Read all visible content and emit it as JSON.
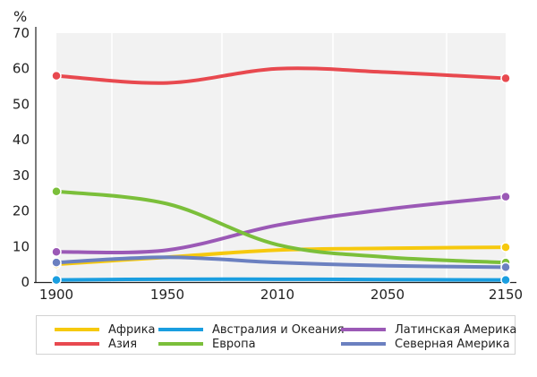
{
  "chart_data": {
    "type": "line",
    "unit_label": "%",
    "title": "",
    "xlabel": "",
    "ylabel": "%",
    "ylim": [
      0,
      70
    ],
    "y_ticks": [
      0,
      10,
      20,
      30,
      40,
      50,
      60,
      70
    ],
    "categories": [
      "1900",
      "1950",
      "2010",
      "2050",
      "2150"
    ],
    "grid": "vertical-band",
    "legend_position": "bottom",
    "series": [
      {
        "name": "Африка",
        "color": "#f6c90e",
        "values": [
          5,
          7,
          9,
          9.5,
          9.8
        ]
      },
      {
        "name": "Австралия и Океания",
        "color": "#1a9ee0",
        "values": [
          0.6,
          0.8,
          0.8,
          0.7,
          0.6
        ]
      },
      {
        "name": "Латинская Америка",
        "color": "#9b59b6",
        "values": [
          8.5,
          9,
          16,
          20.5,
          24
        ]
      },
      {
        "name": "Азия",
        "color": "#e8494f",
        "values": [
          58,
          56,
          60,
          59,
          57.3
        ]
      },
      {
        "name": "Европа",
        "color": "#7bbf3a",
        "values": [
          25.5,
          22,
          10.5,
          7,
          5.5
        ]
      },
      {
        "name": "Северная Америка",
        "color": "#6b80c0",
        "values": [
          5.5,
          7,
          5.5,
          4.6,
          4.2
        ]
      }
    ]
  }
}
